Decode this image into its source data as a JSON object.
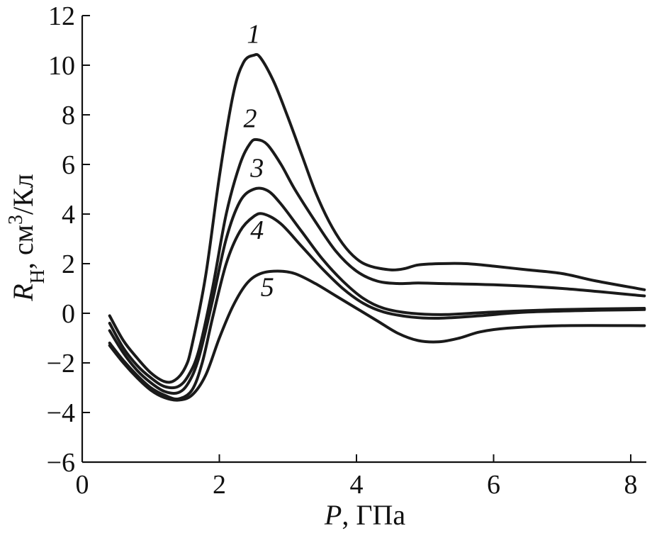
{
  "chart_data": {
    "type": "line",
    "xlabel": {
      "var": "P",
      "rest": ", ГПа"
    },
    "ylabel": {
      "var": "R",
      "sub": "H",
      "mid": ", см",
      "sup": "3",
      "tail": "/Кл"
    },
    "xlim": [
      0,
      8.2
    ],
    "ylim": [
      -6,
      12
    ],
    "xticks": [
      0,
      2,
      4,
      6,
      8
    ],
    "yticks": [
      -6,
      -4,
      -2,
      0,
      2,
      4,
      6,
      8,
      10,
      12
    ],
    "xtick_labels": [
      "0",
      "2",
      "4",
      "6",
      "8"
    ],
    "ytick_labels": [
      "−6",
      "−4",
      "−2",
      "0",
      "2",
      "4",
      "6",
      "8",
      "10",
      "12"
    ],
    "grid": false,
    "legend": "none",
    "series": [
      {
        "label": "1",
        "label_at": [
          2.5,
          10.9
        ],
        "points": [
          [
            0.4,
            -0.1
          ],
          [
            0.6,
            -1.1
          ],
          [
            0.8,
            -1.8
          ],
          [
            1.0,
            -2.4
          ],
          [
            1.2,
            -2.75
          ],
          [
            1.35,
            -2.7
          ],
          [
            1.5,
            -2.2
          ],
          [
            1.6,
            -1.3
          ],
          [
            1.8,
            1.5
          ],
          [
            2.0,
            5.5
          ],
          [
            2.2,
            8.8
          ],
          [
            2.35,
            10.1
          ],
          [
            2.5,
            10.4
          ],
          [
            2.6,
            10.3
          ],
          [
            2.8,
            9.3
          ],
          [
            3.0,
            7.9
          ],
          [
            3.2,
            6.4
          ],
          [
            3.4,
            4.9
          ],
          [
            3.6,
            3.7
          ],
          [
            3.8,
            2.8
          ],
          [
            4.0,
            2.2
          ],
          [
            4.2,
            1.9
          ],
          [
            4.5,
            1.75
          ],
          [
            4.7,
            1.8
          ],
          [
            4.9,
            1.95
          ],
          [
            5.2,
            2.0
          ],
          [
            5.6,
            2.0
          ],
          [
            6.0,
            1.9
          ],
          [
            6.5,
            1.75
          ],
          [
            7.0,
            1.6
          ],
          [
            7.5,
            1.3
          ],
          [
            8.2,
            0.95
          ]
        ]
      },
      {
        "label": "2",
        "label_at": [
          2.45,
          7.5
        ],
        "points": [
          [
            0.4,
            -0.4
          ],
          [
            0.6,
            -1.4
          ],
          [
            0.8,
            -2.1
          ],
          [
            1.0,
            -2.6
          ],
          [
            1.2,
            -2.95
          ],
          [
            1.4,
            -2.95
          ],
          [
            1.55,
            -2.5
          ],
          [
            1.7,
            -1.5
          ],
          [
            1.9,
            1.0
          ],
          [
            2.1,
            4.0
          ],
          [
            2.3,
            6.0
          ],
          [
            2.45,
            6.85
          ],
          [
            2.55,
            7.0
          ],
          [
            2.7,
            6.8
          ],
          [
            2.9,
            6.0
          ],
          [
            3.1,
            5.0
          ],
          [
            3.4,
            3.7
          ],
          [
            3.7,
            2.5
          ],
          [
            4.0,
            1.7
          ],
          [
            4.3,
            1.3
          ],
          [
            4.6,
            1.2
          ],
          [
            4.9,
            1.22
          ],
          [
            5.2,
            1.2
          ],
          [
            6.0,
            1.15
          ],
          [
            7.0,
            1.0
          ],
          [
            8.2,
            0.7
          ]
        ]
      },
      {
        "label": "3",
        "label_at": [
          2.55,
          5.5
        ],
        "points": [
          [
            0.4,
            -0.7
          ],
          [
            0.6,
            -1.6
          ],
          [
            0.8,
            -2.3
          ],
          [
            1.0,
            -2.8
          ],
          [
            1.2,
            -3.15
          ],
          [
            1.4,
            -3.2
          ],
          [
            1.55,
            -2.8
          ],
          [
            1.7,
            -1.8
          ],
          [
            1.9,
            0.5
          ],
          [
            2.1,
            3.0
          ],
          [
            2.3,
            4.5
          ],
          [
            2.5,
            5.0
          ],
          [
            2.7,
            4.95
          ],
          [
            2.9,
            4.4
          ],
          [
            3.2,
            3.3
          ],
          [
            3.5,
            2.2
          ],
          [
            3.8,
            1.3
          ],
          [
            4.1,
            0.6
          ],
          [
            4.4,
            0.2
          ],
          [
            4.8,
            0.0
          ],
          [
            5.3,
            -0.05
          ],
          [
            6.0,
            0.05
          ],
          [
            7.0,
            0.15
          ],
          [
            8.2,
            0.2
          ]
        ]
      },
      {
        "label": "4",
        "label_at": [
          2.55,
          3.0
        ],
        "points": [
          [
            0.4,
            -1.2
          ],
          [
            0.6,
            -1.9
          ],
          [
            0.8,
            -2.5
          ],
          [
            1.0,
            -3.0
          ],
          [
            1.2,
            -3.3
          ],
          [
            1.4,
            -3.45
          ],
          [
            1.6,
            -3.1
          ],
          [
            1.75,
            -2.0
          ],
          [
            1.9,
            -0.2
          ],
          [
            2.1,
            2.0
          ],
          [
            2.3,
            3.3
          ],
          [
            2.5,
            3.9
          ],
          [
            2.65,
            4.0
          ],
          [
            2.9,
            3.6
          ],
          [
            3.2,
            2.7
          ],
          [
            3.5,
            1.8
          ],
          [
            3.8,
            1.0
          ],
          [
            4.1,
            0.4
          ],
          [
            4.4,
            0.05
          ],
          [
            4.8,
            -0.15
          ],
          [
            5.2,
            -0.2
          ],
          [
            5.8,
            -0.1
          ],
          [
            6.5,
            0.05
          ],
          [
            7.5,
            0.12
          ],
          [
            8.2,
            0.15
          ]
        ]
      },
      {
        "label": "5",
        "label_at": [
          2.7,
          0.7
        ],
        "points": [
          [
            0.4,
            -1.3
          ],
          [
            0.6,
            -2.0
          ],
          [
            0.8,
            -2.6
          ],
          [
            1.0,
            -3.1
          ],
          [
            1.2,
            -3.4
          ],
          [
            1.4,
            -3.5
          ],
          [
            1.6,
            -3.3
          ],
          [
            1.8,
            -2.5
          ],
          [
            2.0,
            -1.0
          ],
          [
            2.2,
            0.3
          ],
          [
            2.4,
            1.2
          ],
          [
            2.6,
            1.6
          ],
          [
            2.85,
            1.7
          ],
          [
            3.1,
            1.6
          ],
          [
            3.4,
            1.2
          ],
          [
            3.7,
            0.7
          ],
          [
            4.0,
            0.2
          ],
          [
            4.3,
            -0.3
          ],
          [
            4.6,
            -0.8
          ],
          [
            4.9,
            -1.1
          ],
          [
            5.2,
            -1.15
          ],
          [
            5.5,
            -1.0
          ],
          [
            5.8,
            -0.75
          ],
          [
            6.2,
            -0.6
          ],
          [
            7.0,
            -0.5
          ],
          [
            8.2,
            -0.5
          ]
        ]
      }
    ]
  }
}
